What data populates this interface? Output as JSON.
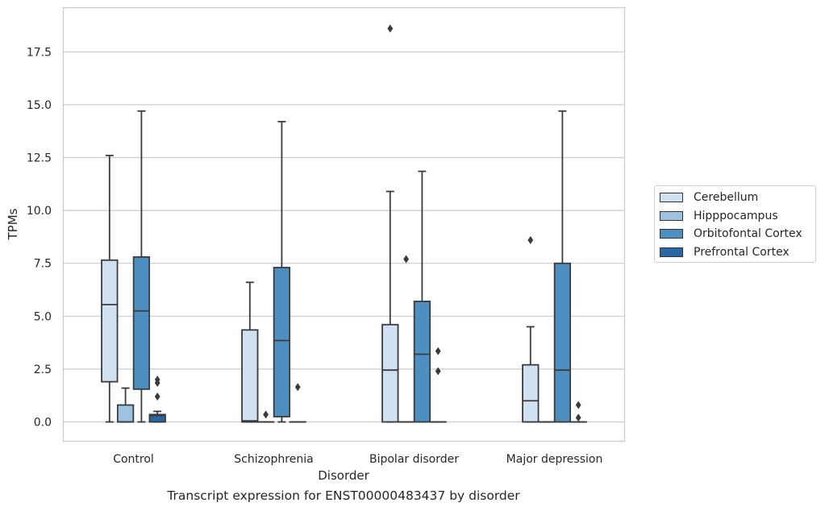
{
  "chart_data": {
    "type": "boxplot",
    "caption": "Transcript expression for ENST00000483437 by disorder",
    "xlabel": "Disorder",
    "ylabel": "TPMs",
    "ylim": [
      -0.9,
      19.6
    ],
    "yticks": [
      0.0,
      2.5,
      5.0,
      7.5,
      10.0,
      12.5,
      15.0,
      17.5
    ],
    "ytick_labels": [
      "0.0",
      "2.5",
      "5.0",
      "7.5",
      "10.0",
      "12.5",
      "15.0",
      "17.5"
    ],
    "grid": true,
    "legend_position": "right",
    "categories": [
      "Control",
      "Schizophrenia",
      "Bipolar disorder",
      "Major depression"
    ],
    "series": [
      {
        "name": "Cerebellum",
        "color": "#d0e1f2",
        "boxes": [
          {
            "whislo": 0.0,
            "q1": 1.9,
            "med": 5.55,
            "q3": 7.65,
            "whishi": 12.6,
            "fliers": []
          },
          {
            "whislo": 0.0,
            "q1": 0.0,
            "med": 0.05,
            "q3": 4.35,
            "whishi": 6.6,
            "fliers": []
          },
          {
            "whislo": 0.0,
            "q1": 0.0,
            "med": 2.45,
            "q3": 4.6,
            "whishi": 10.9,
            "fliers": [
              18.6
            ]
          },
          {
            "whislo": 0.0,
            "q1": 0.0,
            "med": 1.0,
            "q3": 2.7,
            "whishi": 4.5,
            "fliers": [
              8.6
            ]
          }
        ]
      },
      {
        "name": "Hipppocampus",
        "color": "#9dc3e0",
        "boxes": [
          {
            "whislo": 0.0,
            "q1": 0.0,
            "med": 0.0,
            "q3": 0.8,
            "whishi": 1.6,
            "fliers": []
          },
          {
            "whislo": 0.0,
            "q1": 0.0,
            "med": 0.0,
            "q3": 0.0,
            "whishi": 0.0,
            "fliers": [
              0.35
            ]
          },
          {
            "whislo": 0.0,
            "q1": 0.0,
            "med": 0.0,
            "q3": 0.0,
            "whishi": 0.0,
            "fliers": [
              7.7
            ]
          },
          {
            "whislo": 0.0,
            "q1": 0.0,
            "med": 0.0,
            "q3": 0.0,
            "whishi": 0.0,
            "fliers": []
          }
        ]
      },
      {
        "name": "Orbitofontal Cortex",
        "color": "#4c8fc0",
        "boxes": [
          {
            "whislo": 0.0,
            "q1": 1.55,
            "med": 5.25,
            "q3": 7.8,
            "whishi": 14.7,
            "fliers": []
          },
          {
            "whislo": 0.0,
            "q1": 0.25,
            "med": 3.85,
            "q3": 7.3,
            "whishi": 14.2,
            "fliers": []
          },
          {
            "whislo": 0.0,
            "q1": 0.0,
            "med": 3.2,
            "q3": 5.7,
            "whishi": 11.85,
            "fliers": []
          },
          {
            "whislo": 0.0,
            "q1": 0.0,
            "med": 2.45,
            "q3": 7.5,
            "whishi": 14.7,
            "fliers": []
          }
        ]
      },
      {
        "name": "Prefrontal Cortex",
        "color": "#2867a6",
        "boxes": [
          {
            "whislo": 0.0,
            "q1": 0.0,
            "med": 0.3,
            "q3": 0.35,
            "whishi": 0.5,
            "fliers": [
              1.2,
              1.85,
              2.0
            ]
          },
          {
            "whislo": 0.0,
            "q1": 0.0,
            "med": 0.0,
            "q3": 0.0,
            "whishi": 0.0,
            "fliers": [
              1.65
            ]
          },
          {
            "whislo": 0.0,
            "q1": 0.0,
            "med": 0.0,
            "q3": 0.0,
            "whishi": 0.0,
            "fliers": [
              2.4,
              3.35
            ]
          },
          {
            "whislo": 0.0,
            "q1": 0.0,
            "med": 0.0,
            "q3": 0.0,
            "whishi": 0.0,
            "fliers": [
              0.2,
              0.8
            ]
          }
        ]
      }
    ]
  }
}
